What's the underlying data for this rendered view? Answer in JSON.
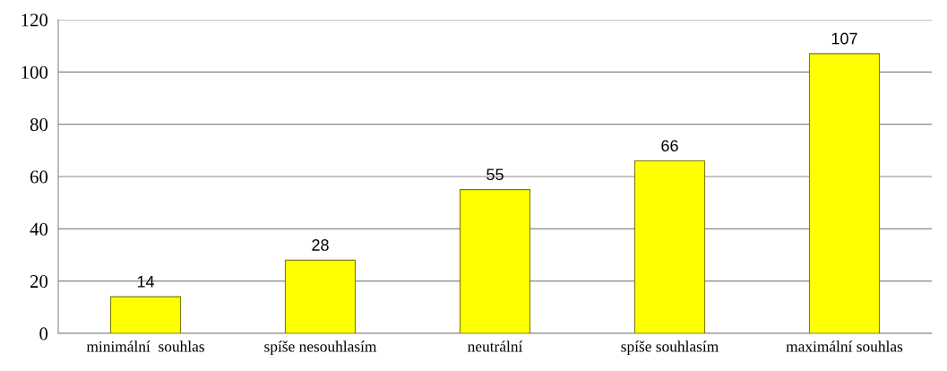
{
  "chart_data": {
    "type": "bar",
    "categories": [
      "minimální  souhlas",
      "spíše nesouhlasím",
      "neutrální",
      "spíše souhlasím",
      "maximální souhlas"
    ],
    "values": [
      14,
      28,
      55,
      66,
      107
    ],
    "color": "#ffff00",
    "ylim": [
      0,
      120
    ],
    "yticks": [
      0,
      20,
      40,
      60,
      80,
      100,
      120
    ],
    "grid": "y",
    "data_labels": true
  }
}
